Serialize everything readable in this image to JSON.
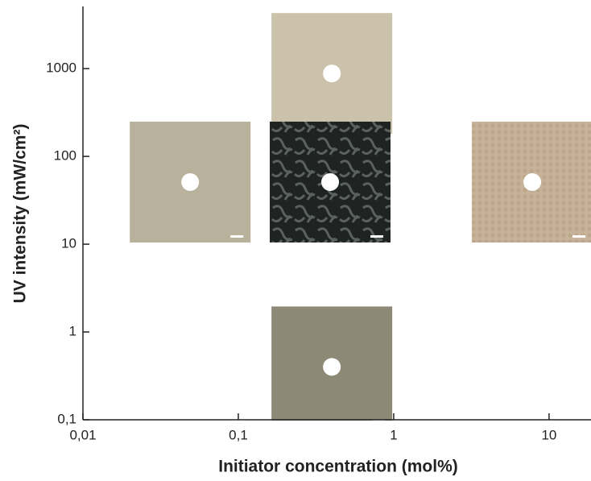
{
  "chart_data": {
    "type": "scatter",
    "xlabel": "Initiator concentration (mol%)",
    "ylabel": "UV intensity (mW/cm²)",
    "x_log": true,
    "y_log": true,
    "xlim": [
      0.01,
      18.4
    ],
    "ylim": [
      0.1,
      5000
    ],
    "xticks": [
      {
        "value": 0.01,
        "label": "0,01"
      },
      {
        "value": 0.1,
        "label": "0,1"
      },
      1,
      10
    ],
    "yticks": [
      {
        "value": 0.1,
        "label": "0,1"
      },
      1,
      10,
      100,
      1000
    ],
    "series": [
      {
        "color": "#ffffff",
        "x": [
          0.049,
          0.4,
          0.39,
          7.8,
          0.4
        ],
        "values": [
          51,
          880,
          51,
          51,
          0.4
        ]
      }
    ]
  }
}
